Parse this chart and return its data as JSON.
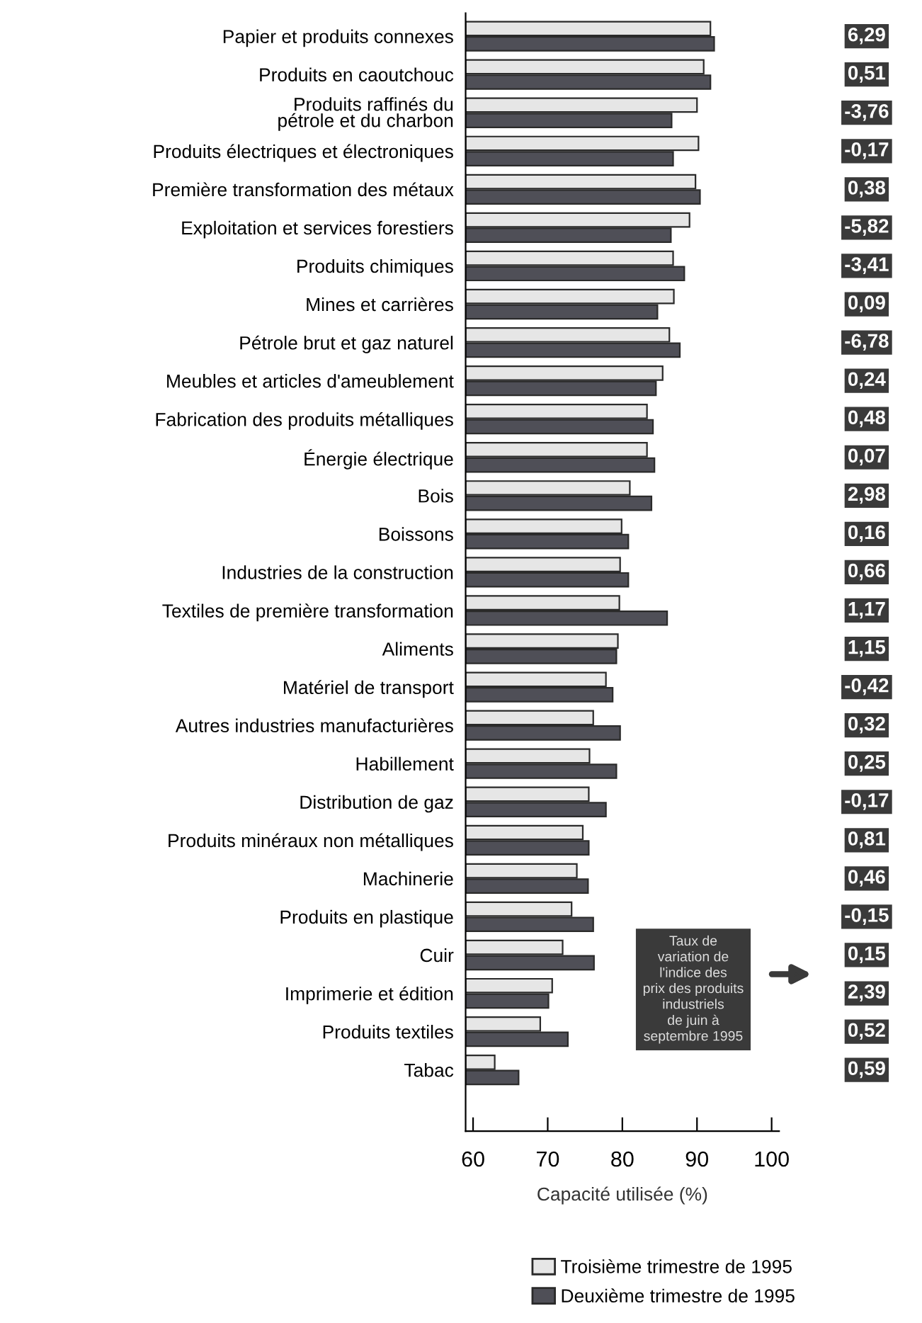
{
  "chart_data": {
    "type": "bar",
    "orientation": "horizontal",
    "xlabel": "Capacité utilisée (%)",
    "categories": [
      "Papier et produits connexes",
      "Produits en caoutchouc",
      "Produits raffinés du\npétrole et du charbon",
      "Produits électriques et électroniques",
      "Première transformation des métaux",
      "Exploitation et services forestiers",
      "Produits chimiques",
      "Mines et carrières",
      "Pétrole brut et gaz naturel",
      "Meubles et articles d'ameublement",
      "Fabrication des produits métalliques",
      "Énergie électrique",
      "Bois",
      "Boissons",
      "Industries de la construction",
      "Textiles de première transformation",
      "Aliments",
      "Matériel de transport",
      "Autres industries manufacturières",
      "Habillement",
      "Distribution de gaz",
      "Produits minéraux non métalliques",
      "Machinerie",
      "Produits en plastique",
      "Cuir",
      "Imprimerie et édition",
      "Produits textiles",
      "Tabac"
    ],
    "series": [
      {
        "name": "Troisième trimestre de 1995",
        "color": "#e6e6e6",
        "values": [
          91.8,
          90.9,
          90.0,
          90.2,
          89.8,
          89.0,
          86.8,
          86.9,
          86.3,
          85.4,
          83.3,
          83.3,
          81.0,
          79.9,
          79.7,
          79.6,
          79.4,
          77.8,
          76.1,
          75.6,
          75.5,
          74.7,
          73.9,
          73.2,
          72.0,
          70.6,
          69.0,
          62.9
        ]
      },
      {
        "name": "Deuxième trimestre de 1995",
        "color": "#4f4f57",
        "values": [
          92.3,
          91.8,
          86.6,
          86.8,
          90.4,
          86.5,
          88.3,
          84.7,
          87.7,
          84.5,
          84.1,
          84.3,
          83.9,
          80.8,
          80.8,
          86.0,
          79.2,
          78.7,
          79.7,
          79.2,
          77.8,
          75.5,
          75.4,
          76.1,
          76.2,
          70.1,
          72.7,
          66.1
        ]
      }
    ],
    "xlim": [
      59,
      101
    ],
    "xticks": [
      60,
      70,
      80,
      90,
      100
    ],
    "grid": false,
    "legend": "bottom",
    "annotations": [
      "Taux de\nvariation de\nl'indice des\nprix des produits\nindustriels\nde juin à\nseptembre 1995",
      "6,29",
      "0,51",
      "-3,76",
      "-0,17",
      "0,38",
      "-5,82",
      "-3,41",
      "0,09",
      "-6,78",
      "0,24",
      "0,48",
      "0,07",
      "2,98",
      "0,16",
      "0,66",
      "1,17",
      "1,15",
      "-0,42",
      "0,32",
      "0,25",
      "-0,17",
      "0,81",
      "0,46",
      "-0,15",
      "0,15",
      "2,39",
      "0,52",
      "0,59"
    ]
  }
}
